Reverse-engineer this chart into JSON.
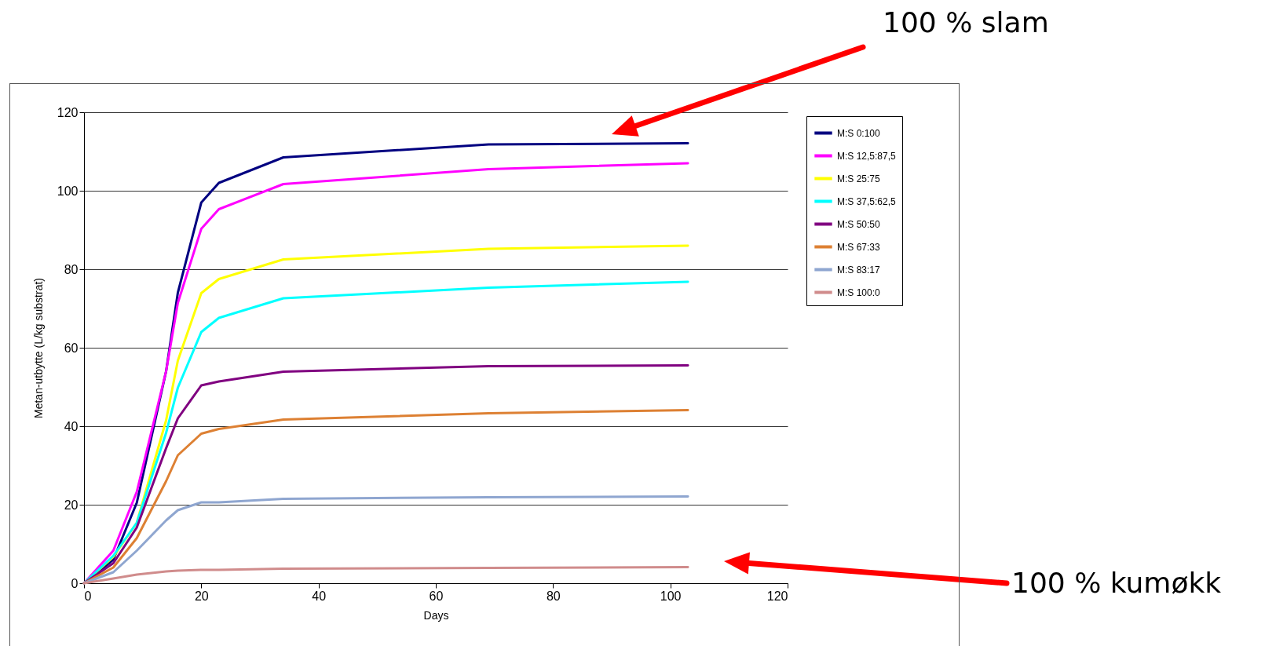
{
  "chart_data": {
    "type": "line",
    "xlabel": "Days",
    "ylabel": "Metan-utbytte (L/kg substrat)",
    "xlim": [
      0,
      120
    ],
    "xticks": [
      0,
      20,
      40,
      60,
      80,
      100,
      120
    ],
    "ylim": [
      0,
      120
    ],
    "yticks": [
      0,
      20,
      40,
      60,
      80,
      100,
      120
    ],
    "grid": "y",
    "legend": "top right",
    "marker": "none",
    "line_style": "solid",
    "x": [
      0,
      5,
      9,
      14,
      16,
      20,
      23,
      34,
      69,
      103
    ],
    "series": [
      {
        "name": "M:S 0:100",
        "color": "#000080",
        "values": [
          0,
          6,
          20.5,
          54,
          74,
          97,
          102,
          108.5,
          111.8,
          112.1
        ]
      },
      {
        "name": "M:S 12,5:87,5",
        "color": "#ff00ff",
        "values": [
          0,
          8.3,
          23.3,
          54,
          71.4,
          90.3,
          95.3,
          101.7,
          105.5,
          107
        ]
      },
      {
        "name": "M:S 25:75",
        "color": "#ffff00",
        "values": [
          0,
          6.7,
          15.4,
          41.5,
          56.7,
          73.9,
          77.5,
          82.5,
          85.2,
          86
        ]
      },
      {
        "name": "M:S 37,5:62,5",
        "color": "#00ffff",
        "values": [
          0,
          7,
          15.4,
          38.3,
          49.8,
          64,
          67.6,
          72.6,
          75.3,
          76.8
        ]
      },
      {
        "name": "M:S 50:50",
        "color": "#800080",
        "values": [
          0,
          5.1,
          14.2,
          34.4,
          42,
          50.4,
          51.4,
          53.9,
          55.3,
          55.5
        ]
      },
      {
        "name": "M:S 67:33",
        "color": "#dd8033",
        "values": [
          0,
          4,
          11.5,
          26,
          32.6,
          38.1,
          39.3,
          41.7,
          43.3,
          44.1
        ]
      },
      {
        "name": "M:S 83:17",
        "color": "#8fa6d0",
        "values": [
          0,
          2.8,
          8.3,
          16,
          18.6,
          20.6,
          20.6,
          21.5,
          21.9,
          22.1
        ]
      },
      {
        "name": "M:S 100:0",
        "color": "#d08c8c",
        "values": [
          0,
          1.2,
          2.2,
          3,
          3.2,
          3.4,
          3.4,
          3.7,
          3.9,
          4.1
        ]
      }
    ],
    "annotations": [
      "100 % slam",
      "100 % kumøkk"
    ]
  }
}
